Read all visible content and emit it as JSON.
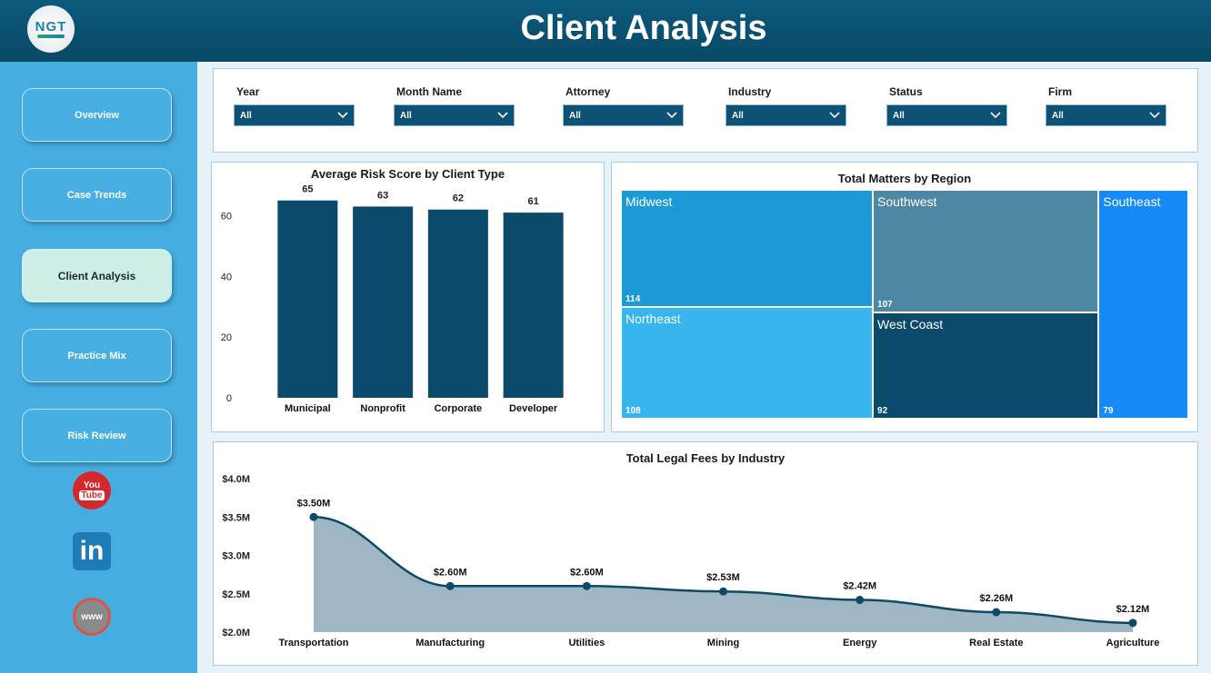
{
  "header": {
    "logo_text": "NGT",
    "title": "Client Analysis"
  },
  "sidebar": {
    "items": [
      {
        "label": "Overview"
      },
      {
        "label": "Case Trends"
      },
      {
        "label": "Client Analysis"
      },
      {
        "label": "Practice Mix"
      },
      {
        "label": "Risk Review"
      }
    ],
    "active_index": 2,
    "social": [
      {
        "icon": "youtube-icon",
        "glyph_top": "You",
        "glyph_bottom": "Tube"
      },
      {
        "icon": "linkedin-icon",
        "glyph": "in"
      },
      {
        "icon": "globe-icon",
        "glyph": "www"
      }
    ]
  },
  "filters": [
    {
      "label": "Year",
      "value": "All"
    },
    {
      "label": "Month Name",
      "value": "All"
    },
    {
      "label": "Attorney",
      "value": "All"
    },
    {
      "label": "Industry",
      "value": "All"
    },
    {
      "label": "Status",
      "value": "All"
    },
    {
      "label": "Firm",
      "value": "All"
    }
  ],
  "chart_data": [
    {
      "type": "bar",
      "title": "Average Risk Score by Client Type",
      "categories": [
        "Municipal",
        "Nonprofit",
        "Corporate",
        "Developer"
      ],
      "values": [
        65,
        63,
        62,
        61
      ],
      "yticks": [
        "0",
        "20",
        "40",
        "60"
      ],
      "ylim": [
        0,
        70
      ],
      "color": "#0b4a6b"
    },
    {
      "type": "treemap",
      "title": "Total Matters by Region",
      "items": [
        {
          "name": "Midwest",
          "value": 114,
          "color": "#1b9ad6"
        },
        {
          "name": "Northeast",
          "value": 108,
          "color": "#37b5ef"
        },
        {
          "name": "Southwest",
          "value": 107,
          "color": "#4d87a3"
        },
        {
          "name": "West Coast",
          "value": 92,
          "color": "#0b4a6b"
        },
        {
          "name": "Southeast",
          "value": 79,
          "color": "#168bf7"
        }
      ]
    },
    {
      "type": "area",
      "title": "Total Legal Fees by Industry",
      "categories": [
        "Transportation",
        "Manufacturing",
        "Utilities",
        "Mining",
        "Energy",
        "Real Estate",
        "Agriculture"
      ],
      "values": [
        3.5,
        2.6,
        2.6,
        2.53,
        2.42,
        2.26,
        2.12
      ],
      "labels": [
        "$3.50M",
        "$2.60M",
        "$2.60M",
        "$2.53M",
        "$2.42M",
        "$2.26M",
        "$2.12M"
      ],
      "yticks": [
        "$2.0M",
        "$2.5M",
        "$3.0M",
        "$3.5M",
        "$4.0M"
      ],
      "ylim": [
        2.0,
        4.0
      ],
      "line_color": "#0d4a66",
      "fill_color": "#9fb7c4"
    }
  ]
}
